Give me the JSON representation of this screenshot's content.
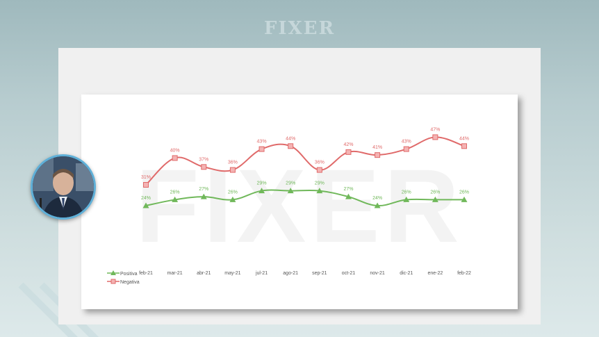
{
  "header": {
    "logo_text": "FIXER"
  },
  "chart_data": {
    "type": "line",
    "categories": [
      "feb-21",
      "mar-21",
      "abr-21",
      "may-21",
      "jul-21",
      "ago-21",
      "sep-21",
      "oct-21",
      "nov-21",
      "dic-21",
      "ene-22",
      "feb-22"
    ],
    "series": [
      {
        "name": "Positiva",
        "values": [
          24,
          26,
          27,
          26,
          29,
          29,
          29,
          27,
          24,
          26,
          26,
          26
        ],
        "labels": [
          "24%",
          "26%",
          "27%",
          "26%",
          "29%",
          "29%",
          "29%",
          "27%",
          "24%",
          "26%",
          "26%",
          "26%"
        ],
        "color": "#70b85a",
        "marker": "triangle"
      },
      {
        "name": "Negativa",
        "values": [
          31,
          40,
          37,
          36,
          43,
          44,
          36,
          42,
          41,
          43,
          47,
          44
        ],
        "labels": [
          "31%",
          "40%",
          "37%",
          "36%",
          "43%",
          "44%",
          "36%",
          "42%",
          "41%",
          "43%",
          "47%",
          "44%"
        ],
        "color": "#e06a6a",
        "marker": "square"
      }
    ],
    "ylim": [
      10,
      52
    ],
    "grid": false,
    "legend": "bottom-left",
    "watermark": "FIXER"
  }
}
